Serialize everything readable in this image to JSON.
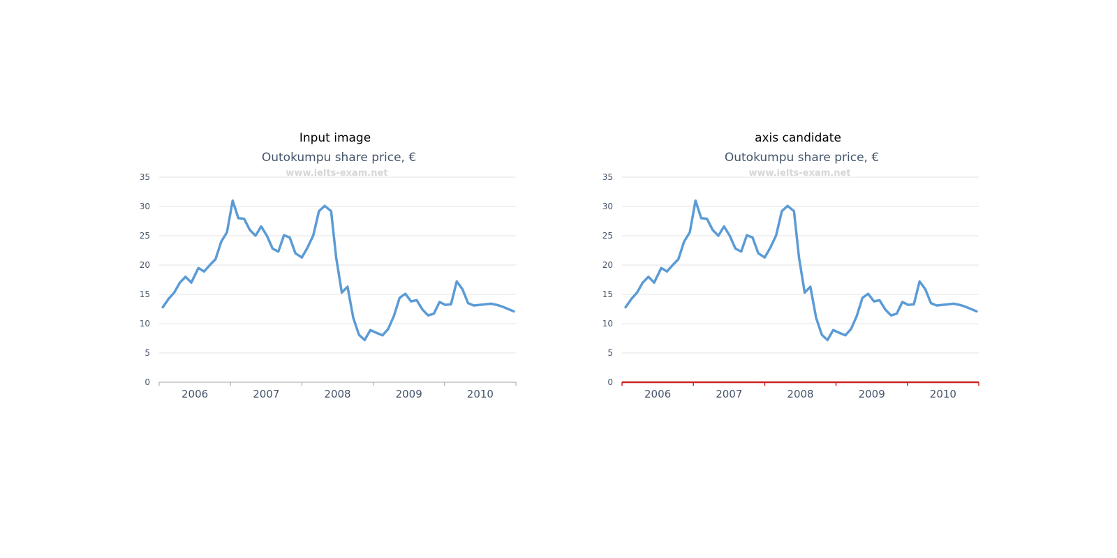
{
  "panels": [
    {
      "label": "Input image"
    },
    {
      "label": "axis candidate"
    }
  ],
  "chart_data": [
    {
      "type": "line",
      "title": "Outokumpu share price, €",
      "watermark": "www.ielts-exam.net",
      "xlabel": "",
      "ylabel": "",
      "ylim": [
        0,
        35
      ],
      "y_ticks": [
        "0",
        "5",
        "10",
        "15",
        "20",
        "25",
        "30",
        "35"
      ],
      "x_ticks": [
        "2006",
        "2007",
        "2008",
        "2009",
        "2010"
      ],
      "xlim": [
        2006,
        2011
      ],
      "grid": true,
      "line_color": "#5b9bd5",
      "x": [
        2006.05,
        2006.13,
        2006.21,
        2006.29,
        2006.37,
        2006.45,
        2006.55,
        2006.63,
        2006.71,
        2006.79,
        2006.87,
        2006.95,
        2007.03,
        2007.11,
        2007.19,
        2007.27,
        2007.35,
        2007.43,
        2007.51,
        2007.59,
        2007.67,
        2007.75,
        2007.83,
        2007.91,
        2008.0,
        2008.08,
        2008.16,
        2008.24,
        2008.32,
        2008.41,
        2008.48,
        2008.56,
        2008.64,
        2008.72,
        2008.8,
        2008.88,
        2008.96,
        2009.05,
        2009.13,
        2009.21,
        2009.29,
        2009.37,
        2009.45,
        2009.53,
        2009.61,
        2009.69,
        2009.77,
        2009.85,
        2009.93,
        2010.01,
        2010.09,
        2010.17,
        2010.25,
        2010.33,
        2010.41,
        2010.49,
        2010.57,
        2010.65,
        2010.73,
        2010.81,
        2010.89,
        2010.97
      ],
      "values": [
        12.8,
        14.2,
        15.3,
        17.0,
        18.0,
        17.0,
        19.5,
        18.9,
        20.0,
        21.0,
        24.0,
        25.6,
        31.0,
        28.0,
        27.9,
        26.0,
        25.0,
        26.6,
        25.0,
        22.8,
        22.3,
        25.1,
        24.7,
        22.0,
        21.3,
        23.0,
        25.1,
        29.2,
        30.1,
        29.2,
        21.3,
        15.3,
        16.3,
        11.0,
        8.1,
        7.2,
        8.9,
        8.4,
        8.0,
        9.1,
        11.3,
        14.4,
        15.1,
        13.8,
        14.0,
        12.4,
        11.4,
        11.7,
        13.7,
        13.2,
        13.3,
        17.2,
        15.9,
        13.5,
        13.1,
        13.2,
        13.3,
        13.4,
        13.2,
        12.9,
        12.5,
        12.1
      ]
    },
    {
      "type": "line",
      "title": "Outokumpu share price, €",
      "watermark": "www.ielts-exam.net",
      "xlabel": "",
      "ylabel": "",
      "ylim": [
        0,
        35
      ],
      "y_ticks": [
        "0",
        "5",
        "10",
        "15",
        "20",
        "25",
        "30",
        "35"
      ],
      "x_ticks": [
        "2006",
        "2007",
        "2008",
        "2009",
        "2010"
      ],
      "xlim": [
        2006,
        2011
      ],
      "grid": true,
      "line_color": "#5b9bd5",
      "axis_highlight_color": "#cc2222",
      "x": [
        2006.05,
        2006.13,
        2006.21,
        2006.29,
        2006.37,
        2006.45,
        2006.55,
        2006.63,
        2006.71,
        2006.79,
        2006.87,
        2006.95,
        2007.03,
        2007.11,
        2007.19,
        2007.27,
        2007.35,
        2007.43,
        2007.51,
        2007.59,
        2007.67,
        2007.75,
        2007.83,
        2007.91,
        2008.0,
        2008.08,
        2008.16,
        2008.24,
        2008.32,
        2008.41,
        2008.48,
        2008.56,
        2008.64,
        2008.72,
        2008.8,
        2008.88,
        2008.96,
        2009.05,
        2009.13,
        2009.21,
        2009.29,
        2009.37,
        2009.45,
        2009.53,
        2009.61,
        2009.69,
        2009.77,
        2009.85,
        2009.93,
        2010.01,
        2010.09,
        2010.17,
        2010.25,
        2010.33,
        2010.41,
        2010.49,
        2010.57,
        2010.65,
        2010.73,
        2010.81,
        2010.89,
        2010.97
      ],
      "values": [
        12.8,
        14.2,
        15.3,
        17.0,
        18.0,
        17.0,
        19.5,
        18.9,
        20.0,
        21.0,
        24.0,
        25.6,
        31.0,
        28.0,
        27.9,
        26.0,
        25.0,
        26.6,
        25.0,
        22.8,
        22.3,
        25.1,
        24.7,
        22.0,
        21.3,
        23.0,
        25.1,
        29.2,
        30.1,
        29.2,
        21.3,
        15.3,
        16.3,
        11.0,
        8.1,
        7.2,
        8.9,
        8.4,
        8.0,
        9.1,
        11.3,
        14.4,
        15.1,
        13.8,
        14.0,
        12.4,
        11.4,
        11.7,
        13.7,
        13.2,
        13.3,
        17.2,
        15.9,
        13.5,
        13.1,
        13.2,
        13.3,
        13.4,
        13.2,
        12.9,
        12.5,
        12.1
      ]
    }
  ]
}
